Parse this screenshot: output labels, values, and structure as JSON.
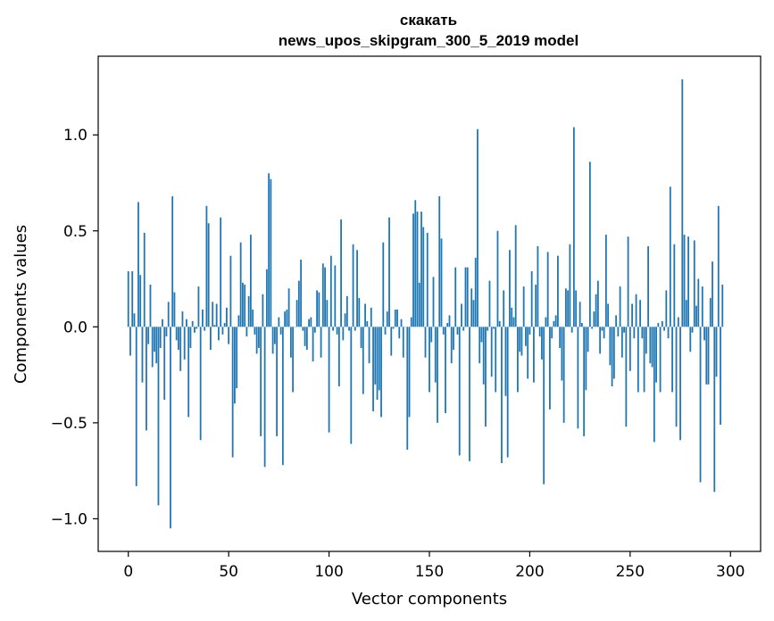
{
  "chart_data": {
    "type": "bar",
    "title": "скакать",
    "subtitle": "news_upos_skipgram_300_5_2019 model",
    "xlabel": "Vector components",
    "ylabel": "Components values",
    "xlim": [
      -15,
      315
    ],
    "ylim": [
      -1.17,
      1.41
    ],
    "xticks": [
      0,
      50,
      100,
      150,
      200,
      250,
      300
    ],
    "xtick_labels": [
      "0",
      "50",
      "100",
      "150",
      "200",
      "250",
      "300"
    ],
    "yticks": [
      -1.0,
      -0.5,
      0.0,
      0.5,
      1.0
    ],
    "ytick_labels": [
      "−1.0",
      "−0.5",
      "0.0",
      "0.5",
      "1.0"
    ],
    "grid": false,
    "bar_color": "#1f77b4",
    "x_start": 0,
    "values": [
      0.29,
      -0.15,
      0.29,
      0.07,
      -0.83,
      0.65,
      0.27,
      -0.29,
      0.49,
      -0.54,
      -0.09,
      0.22,
      -0.21,
      -0.13,
      -0.19,
      -0.93,
      -0.11,
      0.04,
      -0.38,
      -0.05,
      0.13,
      -1.05,
      0.68,
      0.18,
      -0.07,
      -0.12,
      -0.23,
      0.08,
      -0.17,
      0.04,
      -0.47,
      -0.11,
      0.03,
      -0.03,
      -0.01,
      0.21,
      -0.59,
      0.09,
      -0.02,
      0.63,
      0.54,
      -0.12,
      0.13,
      0.01,
      0.12,
      -0.07,
      0.57,
      -0.04,
      0.02,
      0.1,
      -0.09,
      0.37,
      -0.68,
      -0.4,
      -0.32,
      0.06,
      0.44,
      0.23,
      0.22,
      -0.05,
      0.16,
      0.48,
      0.09,
      -0.04,
      -0.14,
      -0.11,
      -0.57,
      0.17,
      -0.73,
      0.3,
      0.8,
      0.77,
      -0.14,
      -0.09,
      -0.57,
      0.05,
      -0.04,
      -0.72,
      0.08,
      0.09,
      0.2,
      -0.16,
      -0.34,
      0.0,
      0.14,
      0.24,
      0.35,
      -0.02,
      -0.1,
      -0.12,
      0.04,
      0.05,
      -0.18,
      -0.03,
      0.19,
      0.18,
      -0.16,
      0.33,
      0.31,
      0.14,
      -0.55,
      0.37,
      -0.02,
      0.32,
      -0.04,
      -0.31,
      0.56,
      -0.07,
      0.07,
      0.16,
      -0.02,
      -0.61,
      0.43,
      -0.02,
      0.4,
      0.15,
      -0.11,
      -0.35,
      0.12,
      0.03,
      -0.19,
      0.1,
      -0.44,
      -0.3,
      -0.38,
      -0.33,
      -0.47,
      0.44,
      -0.04,
      0.08,
      0.57,
      -0.15,
      -0.01,
      0.09,
      0.09,
      -0.06,
      0.04,
      -0.16,
      0.0,
      -0.64,
      -0.47,
      0.05,
      0.59,
      0.66,
      0.6,
      0.23,
      0.6,
      0.52,
      -0.16,
      0.49,
      -0.34,
      -0.08,
      0.26,
      -0.29,
      -0.5,
      0.68,
      0.46,
      -0.04,
      -0.45,
      0.02,
      0.06,
      -0.19,
      -0.12,
      0.31,
      -0.04,
      -0.67,
      0.12,
      -0.02,
      0.31,
      0.31,
      -0.7,
      0.2,
      0.14,
      0.36,
      1.03,
      -0.19,
      -0.08,
      -0.3,
      -0.52,
      -0.02,
      0.24,
      -0.26,
      -0.01,
      -0.34,
      0.5,
      0.03,
      -0.71,
      0.19,
      -0.36,
      -0.68,
      0.4,
      0.1,
      0.05,
      0.53,
      -0.34,
      -0.13,
      -0.15,
      0.21,
      -0.1,
      -0.27,
      -0.04,
      0.29,
      -0.29,
      0.22,
      0.42,
      -0.05,
      -0.17,
      -0.82,
      0.05,
      0.39,
      -0.43,
      -0.06,
      0.03,
      0.06,
      0.37,
      -0.11,
      -0.28,
      -0.5,
      0.2,
      0.19,
      0.43,
      -0.03,
      1.04,
      0.19,
      -0.53,
      0.13,
      0.02,
      -0.57,
      -0.33,
      -0.13,
      0.86,
      -0.01,
      0.08,
      0.17,
      0.24,
      -0.14,
      -0.02,
      -0.06,
      0.48,
      0.12,
      -0.2,
      -0.31,
      -0.27,
      0.06,
      -0.05,
      0.21,
      -0.16,
      -0.03,
      -0.52,
      0.47,
      -0.23,
      0.12,
      -0.06,
      0.17,
      -0.34,
      0.14,
      -0.06,
      -0.34,
      -0.14,
      0.42,
      -0.19,
      -0.21,
      -0.6,
      -0.29,
      0.02,
      -0.34,
      0.03,
      -0.02,
      0.19,
      -0.06,
      0.73,
      -0.34,
      0.43,
      -0.52,
      0.05,
      -0.59,
      1.29,
      0.48,
      0.14,
      0.47,
      -0.13,
      -0.03,
      0.45,
      0.11,
      0.25,
      -0.81,
      0.21,
      -0.07,
      -0.3,
      -0.3,
      0.15,
      0.34,
      -0.86,
      -0.26,
      0.63,
      -0.51,
      0.22
    ]
  }
}
